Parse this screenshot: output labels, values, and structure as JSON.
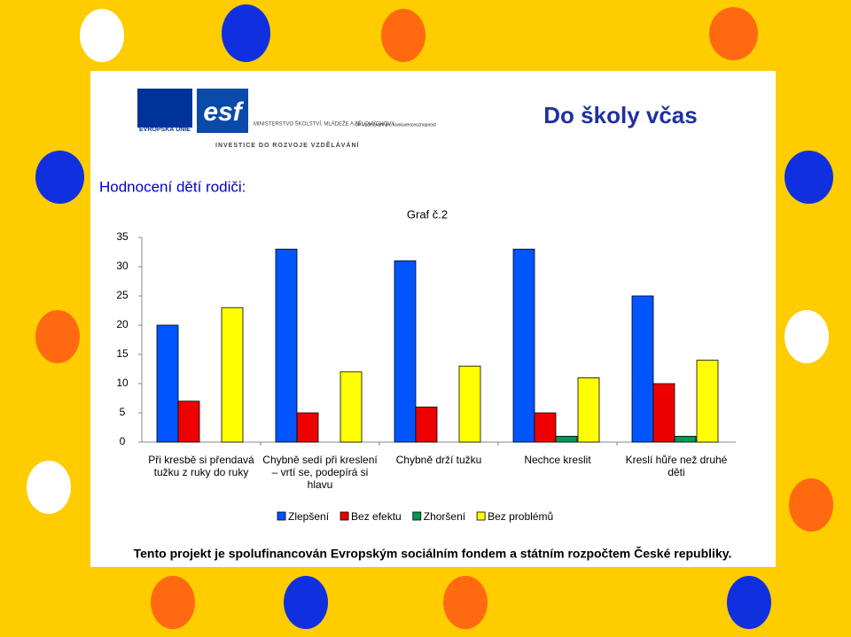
{
  "header": {
    "eu": "EVROPSKÁ UNIE",
    "esf": "esf",
    "msmt": "MINISTERSTVO ŠKOLSTVÍ, MLÁDEŽE A TĚLOVÝCHOVY",
    "op": "OP Vzdělávání pro konkurenceschopnost",
    "invest": "INVESTICE DO ROZVOJE VZDĚLÁVÁNÍ",
    "brand": "Do školy včas"
  },
  "heading": "Hodnocení dětí rodiči:",
  "chart_data": {
    "type": "bar",
    "title": "Graf  č.2",
    "categories": [
      "Při kresbě si přendavá tužku z ruky do ruky",
      "Chybně sedí při kreslení – vrtí se, podepírá si hlavu",
      "Chybně drží tužku",
      "Nechce kreslit",
      "Kreslí hůře než druhé děti"
    ],
    "series": [
      {
        "name": "Zlepšení",
        "color": "#0055ff",
        "values": [
          20,
          33,
          31,
          33,
          25
        ]
      },
      {
        "name": "Bez efektu",
        "color": "#ee0000",
        "values": [
          7,
          5,
          6,
          5,
          10
        ]
      },
      {
        "name": "Zhoršení",
        "color": "#009955",
        "values": [
          0,
          0,
          0,
          1,
          1
        ]
      },
      {
        "name": "Bez problémů",
        "color": "#ffff00",
        "values": [
          23,
          12,
          13,
          11,
          14
        ]
      }
    ],
    "ylim": [
      0,
      35
    ],
    "yticks": [
      0,
      5,
      10,
      15,
      20,
      25,
      30,
      35
    ],
    "grid": false,
    "legend": "bottom"
  },
  "footer": "Tento projekt je spolufinancován Evropským sociálním fondem a státním rozpočtem České republiky."
}
